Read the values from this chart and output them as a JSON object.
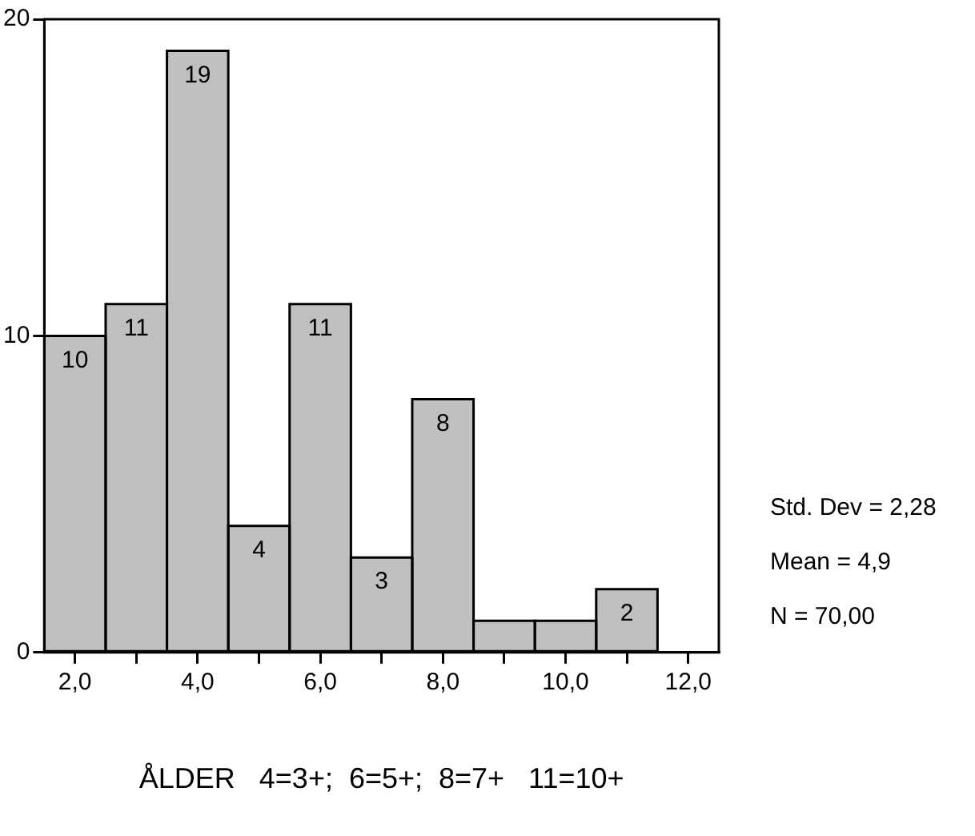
{
  "chart_data": {
    "type": "histogram",
    "xlabel": "ÅLDER   4=3+;  6=5+;  8=7+   11=10+",
    "bins": [
      1.5,
      2.5,
      3.5,
      4.5,
      5.5,
      6.5,
      7.5,
      8.5,
      9.5,
      10.5,
      11.5
    ],
    "values": [
      10,
      11,
      19,
      4,
      11,
      3,
      8,
      1,
      1,
      2
    ],
    "value_labels": [
      "10",
      "11",
      "19",
      "4",
      "11",
      "3",
      "8",
      null,
      null,
      "2"
    ],
    "color": "#c0c0c0",
    "xlim": [
      1.5,
      12.5
    ],
    "xticks": [
      {
        "value": 2,
        "label": "2,0"
      },
      {
        "value": 3,
        "label": null
      },
      {
        "value": 4,
        "label": "4,0"
      },
      {
        "value": 5,
        "label": null
      },
      {
        "value": 6,
        "label": "6,0"
      },
      {
        "value": 7,
        "label": null
      },
      {
        "value": 8,
        "label": "8,0"
      },
      {
        "value": 9,
        "label": null
      },
      {
        "value": 10,
        "label": "10,0"
      },
      {
        "value": 11,
        "label": null
      },
      {
        "value": 12,
        "label": "12,0"
      }
    ],
    "ylim": [
      0,
      20
    ],
    "yticks": [
      0,
      10,
      20
    ],
    "grid": false,
    "legend": false,
    "annotations": [
      "Std. Dev = 2,28",
      "Mean = 4,9",
      "N = 70,00"
    ]
  }
}
